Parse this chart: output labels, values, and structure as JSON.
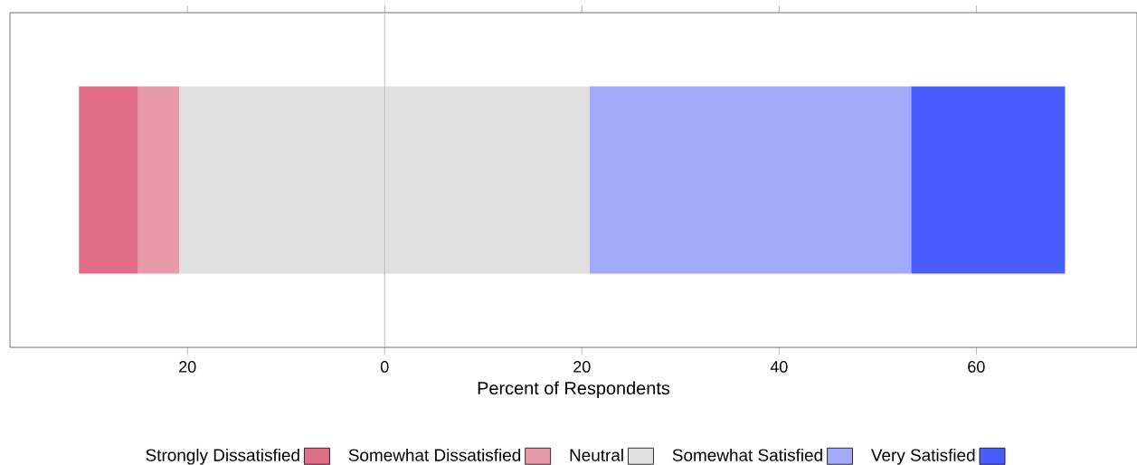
{
  "chart_data": {
    "type": "bar",
    "orientation": "horizontal",
    "categories": [
      null
    ],
    "series": [
      {
        "name": "Strongly Dissatisfied",
        "color": "#e06c86",
        "base": [
          -31.0
        ],
        "values": [
          6.0
        ]
      },
      {
        "name": "Somewhat Dissatisfied",
        "color": "#e89aa8",
        "base": [
          -25.0
        ],
        "values": [
          4.2
        ]
      },
      {
        "name": "Neutral",
        "color": "#e0e0e0",
        "base": [
          -20.8
        ],
        "values": [
          41.6
        ]
      },
      {
        "name": "Somewhat Satisfied",
        "color": "#a0aaf8",
        "base": [
          20.8
        ],
        "values": [
          32.6
        ]
      },
      {
        "name": "Very Satisfied",
        "color": "#4a5dfe",
        "base": [
          53.4
        ],
        "values": [
          15.6
        ]
      }
    ],
    "xlabel": "Percent of Respondents",
    "xlim": [
      -38,
      76.3
    ],
    "xticks": [
      {
        "value": -20,
        "label": "20"
      },
      0,
      20,
      40,
      60
    ],
    "ref_lines": [
      {
        "axis": "x",
        "value": 0,
        "color": "#bebebe"
      }
    ],
    "legend": "bottom"
  }
}
